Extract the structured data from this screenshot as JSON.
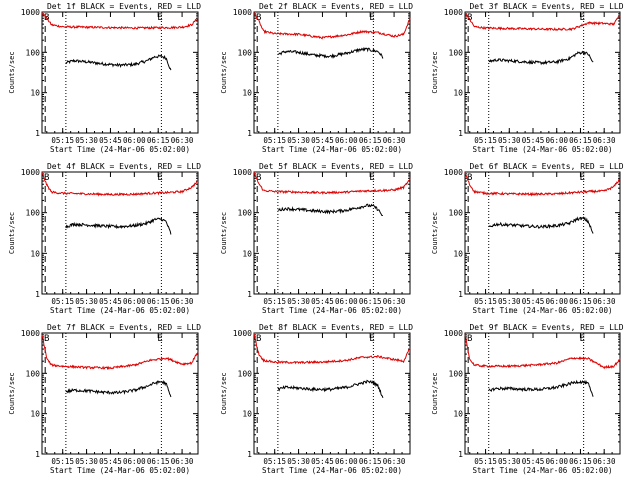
{
  "y_axis_label": "Counts/sec",
  "x_axis_label": "Start Time (24-Mar-06 05:02:00)",
  "x_ticks": [
    "05:15",
    "05:30",
    "05:45",
    "06:00",
    "06:15",
    "06:30"
  ],
  "y_ticks": [
    "1",
    "10",
    "100",
    "1000"
  ],
  "marker_labels": {
    "start": "B",
    "end": "E"
  },
  "colors": {
    "events": "#000000",
    "lld": "#dd0000"
  },
  "chart_data": [
    {
      "type": "line",
      "title": "Det 1f BLACK = Events, RED = LLD",
      "yscale": "log",
      "ylim": [
        1,
        1000
      ],
      "x_range": [
        "05:02",
        "06:40"
      ],
      "dotted_lines_at": [
        "05:17",
        "06:17"
      ],
      "dashed_line_at": "05:04",
      "series": [
        {
          "name": "Events",
          "x": [
            "05:17",
            "05:22",
            "05:30",
            "05:40",
            "05:50",
            "06:00",
            "06:08",
            "06:13",
            "06:17",
            "06:20",
            "06:23"
          ],
          "y": [
            55,
            62,
            58,
            52,
            48,
            50,
            62,
            78,
            80,
            72,
            35
          ]
        },
        {
          "name": "LLD",
          "x": [
            "05:02",
            "05:05",
            "05:08",
            "05:15",
            "05:30",
            "05:45",
            "06:00",
            "06:10",
            "06:20",
            "06:30",
            "06:36",
            "06:40"
          ],
          "y": [
            950,
            700,
            480,
            430,
            420,
            410,
            400,
            405,
            410,
            420,
            480,
            720
          ]
        }
      ]
    },
    {
      "type": "line",
      "title": "Det 2f BLACK = Events, RED = LLD",
      "yscale": "log",
      "ylim": [
        1,
        1000
      ],
      "x_range": [
        "05:02",
        "06:40"
      ],
      "dotted_lines_at": [
        "05:17",
        "06:17"
      ],
      "dashed_line_at": "05:04",
      "series": [
        {
          "name": "Events",
          "x": [
            "05:17",
            "05:22",
            "05:30",
            "05:40",
            "05:50",
            "06:00",
            "06:08",
            "06:13",
            "06:17",
            "06:20",
            "06:23"
          ],
          "y": [
            90,
            105,
            100,
            85,
            80,
            95,
            115,
            120,
            110,
            105,
            75
          ]
        },
        {
          "name": "LLD",
          "x": [
            "05:02",
            "05:05",
            "05:08",
            "05:15",
            "05:30",
            "05:45",
            "06:00",
            "06:10",
            "06:20",
            "06:30",
            "06:36",
            "06:40"
          ],
          "y": [
            950,
            600,
            330,
            290,
            280,
            230,
            270,
            330,
            310,
            250,
            280,
            700
          ]
        }
      ]
    },
    {
      "type": "line",
      "title": "Det 3f BLACK = Events, RED = LLD",
      "yscale": "log",
      "ylim": [
        1,
        1000
      ],
      "x_range": [
        "05:02",
        "06:40"
      ],
      "dotted_lines_at": [
        "05:17",
        "06:17"
      ],
      "dashed_line_at": "05:04",
      "series": [
        {
          "name": "Events",
          "x": [
            "05:17",
            "05:22",
            "05:30",
            "05:40",
            "05:50",
            "06:00",
            "06:08",
            "06:13",
            "06:17",
            "06:20",
            "06:23"
          ],
          "y": [
            60,
            65,
            62,
            58,
            55,
            58,
            70,
            95,
            100,
            90,
            55
          ]
        },
        {
          "name": "LLD",
          "x": [
            "05:02",
            "05:05",
            "05:08",
            "05:15",
            "05:30",
            "05:45",
            "06:00",
            "06:10",
            "06:20",
            "06:30",
            "06:36",
            "06:40"
          ],
          "y": [
            950,
            650,
            430,
            400,
            390,
            380,
            370,
            380,
            540,
            520,
            500,
            850
          ]
        }
      ]
    },
    {
      "type": "line",
      "title": "Det 4f BLACK = Events, RED = LLD",
      "yscale": "log",
      "ylim": [
        1,
        1000
      ],
      "x_range": [
        "05:02",
        "06:40"
      ],
      "dotted_lines_at": [
        "05:17",
        "06:17"
      ],
      "dashed_line_at": "05:04",
      "series": [
        {
          "name": "Events",
          "x": [
            "05:17",
            "05:22",
            "05:30",
            "05:40",
            "05:50",
            "06:00",
            "06:08",
            "06:13",
            "06:17",
            "06:20",
            "06:23"
          ],
          "y": [
            45,
            52,
            50,
            47,
            45,
            48,
            55,
            68,
            70,
            60,
            30
          ]
        },
        {
          "name": "LLD",
          "x": [
            "05:02",
            "05:05",
            "05:08",
            "05:15",
            "05:30",
            "05:45",
            "06:00",
            "06:10",
            "06:20",
            "06:30",
            "06:36",
            "06:40"
          ],
          "y": [
            950,
            480,
            320,
            300,
            290,
            280,
            285,
            300,
            310,
            330,
            420,
            600
          ]
        }
      ]
    },
    {
      "type": "line",
      "title": "Det 5f BLACK = Events, RED = LLD",
      "yscale": "log",
      "ylim": [
        1,
        1000
      ],
      "x_range": [
        "05:02",
        "06:40"
      ],
      "dotted_lines_at": [
        "05:17",
        "06:17"
      ],
      "dashed_line_at": "05:04",
      "series": [
        {
          "name": "Events",
          "x": [
            "05:17",
            "05:22",
            "05:30",
            "05:40",
            "05:50",
            "06:00",
            "06:08",
            "06:13",
            "06:17",
            "06:20",
            "06:23"
          ],
          "y": [
            115,
            125,
            120,
            110,
            105,
            115,
            135,
            150,
            145,
            120,
            80
          ]
        },
        {
          "name": "LLD",
          "x": [
            "05:02",
            "05:05",
            "05:08",
            "05:15",
            "05:30",
            "05:45",
            "06:00",
            "06:10",
            "06:20",
            "06:30",
            "06:36",
            "06:40"
          ],
          "y": [
            950,
            520,
            350,
            330,
            320,
            310,
            320,
            340,
            350,
            360,
            420,
            650
          ]
        }
      ]
    },
    {
      "type": "line",
      "title": "Det 6f BLACK = Events, RED = LLD",
      "yscale": "log",
      "ylim": [
        1,
        1000
      ],
      "x_range": [
        "05:02",
        "06:40"
      ],
      "dotted_lines_at": [
        "05:17",
        "06:17"
      ],
      "dashed_line_at": "05:04",
      "series": [
        {
          "name": "Events",
          "x": [
            "05:17",
            "05:22",
            "05:30",
            "05:40",
            "05:50",
            "06:00",
            "06:08",
            "06:13",
            "06:17",
            "06:20",
            "06:23"
          ],
          "y": [
            45,
            52,
            50,
            47,
            45,
            48,
            55,
            70,
            72,
            60,
            30
          ]
        },
        {
          "name": "LLD",
          "x": [
            "05:02",
            "05:05",
            "05:08",
            "05:15",
            "05:30",
            "05:45",
            "06:00",
            "06:10",
            "06:20",
            "06:30",
            "06:36",
            "06:40"
          ],
          "y": [
            950,
            480,
            330,
            300,
            290,
            285,
            290,
            310,
            330,
            340,
            430,
            680
          ]
        }
      ]
    },
    {
      "type": "line",
      "title": "Det 7f BLACK = Events, RED = LLD",
      "yscale": "log",
      "ylim": [
        1,
        1000
      ],
      "x_range": [
        "05:02",
        "06:40"
      ],
      "dotted_lines_at": [
        "05:17",
        "06:17"
      ],
      "dashed_line_at": "05:04",
      "series": [
        {
          "name": "Events",
          "x": [
            "05:17",
            "05:22",
            "05:30",
            "05:40",
            "05:50",
            "06:00",
            "06:08",
            "06:13",
            "06:17",
            "06:20",
            "06:23"
          ],
          "y": [
            35,
            38,
            37,
            34,
            33,
            38,
            48,
            58,
            62,
            55,
            25
          ]
        },
        {
          "name": "LLD",
          "x": [
            "05:02",
            "05:05",
            "05:08",
            "05:15",
            "05:30",
            "05:45",
            "06:00",
            "06:10",
            "06:20",
            "06:30",
            "06:36",
            "06:40"
          ],
          "y": [
            950,
            230,
            160,
            150,
            140,
            135,
            160,
            210,
            240,
            170,
            180,
            350
          ]
        }
      ]
    },
    {
      "type": "line",
      "title": "Det 8f BLACK = Events, RED = LLD",
      "yscale": "log",
      "ylim": [
        1,
        1000
      ],
      "x_range": [
        "05:02",
        "06:40"
      ],
      "dotted_lines_at": [
        "05:17",
        "06:17"
      ],
      "dashed_line_at": "05:04",
      "series": [
        {
          "name": "Events",
          "x": [
            "05:17",
            "05:22",
            "05:30",
            "05:40",
            "05:50",
            "06:00",
            "06:08",
            "06:13",
            "06:17",
            "06:20",
            "06:23"
          ],
          "y": [
            40,
            45,
            43,
            40,
            40,
            45,
            55,
            62,
            60,
            48,
            25
          ]
        },
        {
          "name": "LLD",
          "x": [
            "05:02",
            "05:05",
            "05:08",
            "05:15",
            "05:30",
            "05:45",
            "06:00",
            "06:10",
            "06:20",
            "06:30",
            "06:36",
            "06:40"
          ],
          "y": [
            950,
            300,
            210,
            190,
            185,
            190,
            210,
            250,
            260,
            220,
            200,
            420
          ]
        }
      ]
    },
    {
      "type": "line",
      "title": "Det 9f BLACK = Events, RED = LLD",
      "yscale": "log",
      "ylim": [
        1,
        1000
      ],
      "x_range": [
        "05:02",
        "06:40"
      ],
      "dotted_lines_at": [
        "05:17",
        "06:17"
      ],
      "dashed_line_at": "05:04",
      "series": [
        {
          "name": "Events",
          "x": [
            "05:17",
            "05:22",
            "05:30",
            "05:40",
            "05:50",
            "06:00",
            "06:08",
            "06:13",
            "06:17",
            "06:20",
            "06:23"
          ],
          "y": [
            38,
            42,
            42,
            40,
            40,
            45,
            55,
            62,
            60,
            55,
            25
          ]
        },
        {
          "name": "LLD",
          "x": [
            "05:02",
            "05:05",
            "05:08",
            "05:15",
            "05:30",
            "05:45",
            "06:00",
            "06:10",
            "06:20",
            "06:30",
            "06:36",
            "06:40"
          ],
          "y": [
            950,
            220,
            160,
            150,
            150,
            160,
            180,
            240,
            230,
            140,
            150,
            220
          ]
        }
      ]
    }
  ]
}
